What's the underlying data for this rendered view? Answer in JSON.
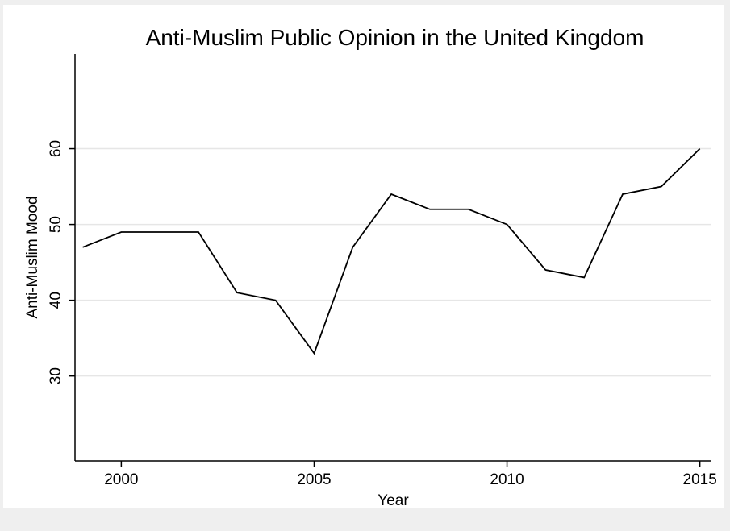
{
  "chart_data": {
    "type": "line",
    "title": "Anti-Muslim Public Opinion in the United Kingdom",
    "xlabel": "Year",
    "ylabel": "Anti-Muslim Mood",
    "x": [
      1999,
      2000,
      2001,
      2002,
      2003,
      2004,
      2005,
      2006,
      2007,
      2008,
      2009,
      2010,
      2011,
      2012,
      2013,
      2014,
      2015
    ],
    "series": [
      {
        "values": [
          47,
          49,
          49,
          49,
          41,
          40,
          33,
          47,
          54,
          52,
          52,
          50,
          44,
          43,
          54,
          55,
          60
        ]
      }
    ],
    "xticks": [
      2000,
      2005,
      2010,
      2015
    ],
    "yticks": [
      30,
      40,
      50,
      60
    ],
    "xlim": [
      1998.8,
      2015.3
    ],
    "ylim": [
      18.8,
      72.5
    ],
    "grid": true,
    "colors": {
      "line": "#000000",
      "grid": "#e6e6e6",
      "frame": "#000000",
      "background": "#ffffff",
      "outer_background": "#efefef"
    }
  }
}
